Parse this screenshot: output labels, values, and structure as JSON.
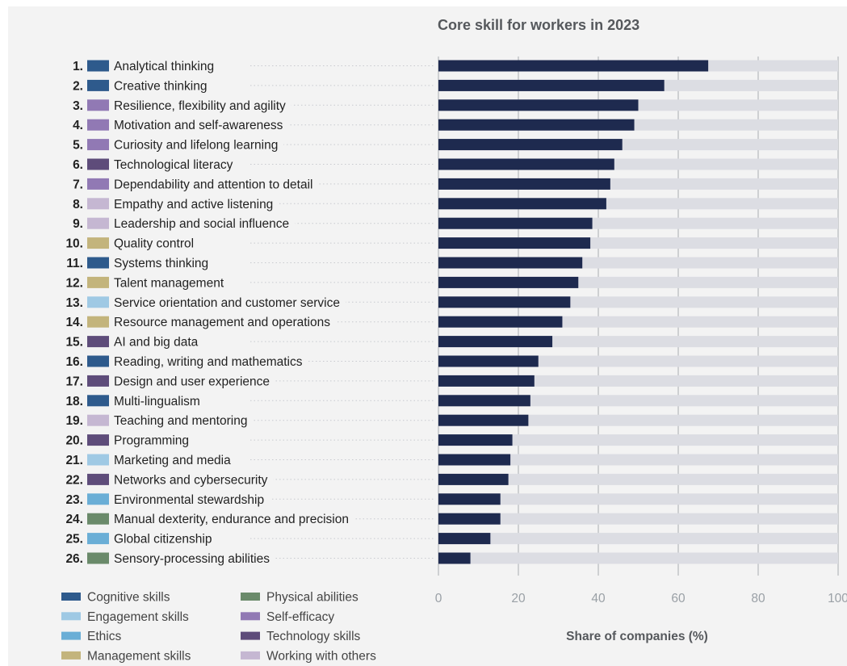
{
  "chart_data": {
    "type": "bar",
    "orientation": "horizontal",
    "title": "Core skill for workers in 2023",
    "xlabel": "Share of companies (%)",
    "xlim": [
      0,
      100
    ],
    "xticks": [
      "0",
      "20",
      "40",
      "60",
      "80",
      "100"
    ],
    "grid": true,
    "bar_color": "#1e2a4f",
    "track_color": "#dcdde3",
    "legend_position": "bottom-left",
    "legend": [
      {
        "name": "Cognitive skills",
        "color": "#2e5a8c"
      },
      {
        "name": "Engagement skills",
        "color": "#9fc9e4"
      },
      {
        "name": "Ethics",
        "color": "#6aaed6"
      },
      {
        "name": "Management skills",
        "color": "#c3b47c"
      },
      {
        "name": "Physical abilities",
        "color": "#6a8a6a"
      },
      {
        "name": "Self-efficacy",
        "color": "#9179b4"
      },
      {
        "name": "Technology skills",
        "color": "#5e4c7a"
      },
      {
        "name": "Working with others",
        "color": "#c5b7d2"
      }
    ],
    "skills": [
      {
        "rank": "1.",
        "label": "Analytical thinking",
        "category": "Cognitive skills",
        "value": 67.5
      },
      {
        "rank": "2.",
        "label": "Creative thinking",
        "category": "Cognitive skills",
        "value": 56.5
      },
      {
        "rank": "3.",
        "label": "Resilience, flexibility and agility",
        "category": "Self-efficacy",
        "value": 50
      },
      {
        "rank": "4.",
        "label": "Motivation and self-awareness",
        "category": "Self-efficacy",
        "value": 49
      },
      {
        "rank": "5.",
        "label": "Curiosity and lifelong learning",
        "category": "Self-efficacy",
        "value": 46
      },
      {
        "rank": "6.",
        "label": "Technological literacy",
        "category": "Technology skills",
        "value": 44
      },
      {
        "rank": "7.",
        "label": "Dependability and attention to detail",
        "category": "Self-efficacy",
        "value": 43
      },
      {
        "rank": "8.",
        "label": "Empathy and active listening",
        "category": "Working with others",
        "value": 42
      },
      {
        "rank": "9.",
        "label": "Leadership and social influence",
        "category": "Working with others",
        "value": 38.5
      },
      {
        "rank": "10.",
        "label": "Quality control",
        "category": "Management skills",
        "value": 38
      },
      {
        "rank": "11.",
        "label": "Systems thinking",
        "category": "Cognitive skills",
        "value": 36
      },
      {
        "rank": "12.",
        "label": "Talent management",
        "category": "Management skills",
        "value": 35
      },
      {
        "rank": "13.",
        "label": "Service orientation and customer service",
        "category": "Engagement skills",
        "value": 33
      },
      {
        "rank": "14.",
        "label": "Resource management and operations",
        "category": "Management skills",
        "value": 31
      },
      {
        "rank": "15.",
        "label": "AI and big data",
        "category": "Technology skills",
        "value": 28.5
      },
      {
        "rank": "16.",
        "label": "Reading, writing and mathematics",
        "category": "Cognitive skills",
        "value": 25
      },
      {
        "rank": "17.",
        "label": "Design and user experience",
        "category": "Technology skills",
        "value": 24
      },
      {
        "rank": "18.",
        "label": "Multi-lingualism",
        "category": "Cognitive skills",
        "value": 23
      },
      {
        "rank": "19.",
        "label": "Teaching and mentoring",
        "category": "Working with others",
        "value": 22.5
      },
      {
        "rank": "20.",
        "label": "Programming",
        "category": "Technology skills",
        "value": 18.5
      },
      {
        "rank": "21.",
        "label": "Marketing and media",
        "category": "Engagement skills",
        "value": 18
      },
      {
        "rank": "22.",
        "label": "Networks and cybersecurity",
        "category": "Technology skills",
        "value": 17.5
      },
      {
        "rank": "23.",
        "label": "Environmental stewardship",
        "category": "Ethics",
        "value": 15.5
      },
      {
        "rank": "24.",
        "label": "Manual dexterity, endurance and precision",
        "category": "Physical abilities",
        "value": 15.5
      },
      {
        "rank": "25.",
        "label": "Global citizenship",
        "category": "Ethics",
        "value": 13
      },
      {
        "rank": "26.",
        "label": "Sensory-processing abilities",
        "category": "Physical abilities",
        "value": 8
      }
    ]
  }
}
